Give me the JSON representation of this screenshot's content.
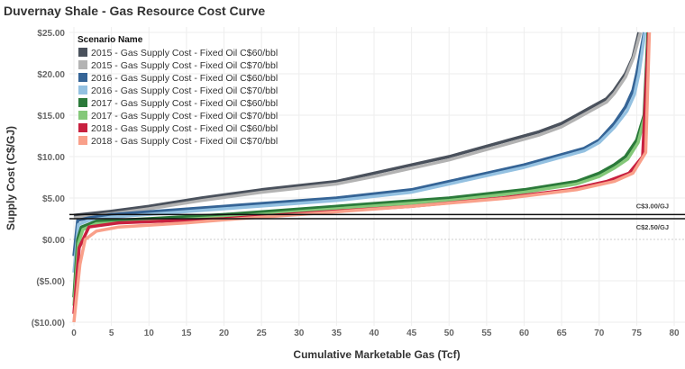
{
  "chart_data": {
    "type": "line",
    "title": "Duvernay Shale - Gas Resource Cost Curve",
    "xlabel": "Cumulative Marketable Gas (Tcf)",
    "ylabel": "Supply Cost (C$/GJ)",
    "xlim": [
      0,
      80
    ],
    "ylim": [
      -10,
      25
    ],
    "x_ticks": [
      "0",
      "5",
      "10",
      "15",
      "20",
      "25",
      "30",
      "35",
      "40",
      "45",
      "50",
      "55",
      "60",
      "65",
      "70",
      "75",
      "80"
    ],
    "y_ticks": [
      {
        "v": 25,
        "label": "$25.00"
      },
      {
        "v": 20,
        "label": "$20.00"
      },
      {
        "v": 15,
        "label": "$15.00"
      },
      {
        "v": 10,
        "label": "$10.00"
      },
      {
        "v": 5,
        "label": "$5.00"
      },
      {
        "v": 0,
        "label": "$0.00"
      },
      {
        "v": -5,
        "label": "($5.00)"
      },
      {
        "v": -10,
        "label": "($10.00)"
      }
    ],
    "grid": true,
    "legend": {
      "title": "Scenario Name",
      "placement": "top-left"
    },
    "reference_lines": [
      {
        "value": 3.0,
        "label": "C$3.00/GJ"
      },
      {
        "value": 2.5,
        "label": "C$2.50/GJ"
      }
    ],
    "series": [
      {
        "name": "2015 - Gas Supply Cost - Fixed Oil C$60/bbl",
        "color": "#4a515c",
        "points": [
          [
            0,
            2.9
          ],
          [
            5,
            3.4
          ],
          [
            10,
            4
          ],
          [
            17,
            5
          ],
          [
            25,
            6
          ],
          [
            35,
            7
          ],
          [
            40,
            8
          ],
          [
            45,
            9
          ],
          [
            50,
            10
          ],
          [
            54,
            11
          ],
          [
            58,
            12
          ],
          [
            62,
            13
          ],
          [
            65,
            14
          ],
          [
            67,
            15
          ],
          [
            69,
            16
          ],
          [
            71,
            17
          ],
          [
            72,
            18
          ],
          [
            73.5,
            20
          ],
          [
            74.5,
            22
          ],
          [
            75.3,
            25
          ]
        ]
      },
      {
        "name": "2015 - Gas Supply Cost - Fixed Oil C$70/bbl",
        "color": "#b3b3b3",
        "points": [
          [
            0,
            2.6
          ],
          [
            5,
            3.1
          ],
          [
            10,
            3.7
          ],
          [
            17,
            4.7
          ],
          [
            25,
            5.7
          ],
          [
            35,
            6.7
          ],
          [
            40,
            7.6
          ],
          [
            45,
            8.6
          ],
          [
            50,
            9.6
          ],
          [
            54,
            10.6
          ],
          [
            58,
            11.6
          ],
          [
            62,
            12.6
          ],
          [
            65,
            13.6
          ],
          [
            67,
            14.6
          ],
          [
            69,
            15.6
          ],
          [
            71,
            16.6
          ],
          [
            72,
            17.6
          ],
          [
            73.5,
            19.6
          ],
          [
            74.6,
            22
          ],
          [
            75.5,
            25
          ]
        ]
      },
      {
        "name": "2016 - Gas Supply Cost - Fixed Oil C$60/bbl",
        "color": "#356496",
        "points": [
          [
            0,
            -2
          ],
          [
            0.5,
            2.3
          ],
          [
            2,
            2.6
          ],
          [
            5,
            3
          ],
          [
            20,
            4
          ],
          [
            35,
            5
          ],
          [
            45,
            6
          ],
          [
            50,
            7
          ],
          [
            55,
            8
          ],
          [
            60,
            9
          ],
          [
            64,
            10
          ],
          [
            68,
            11
          ],
          [
            70,
            12
          ],
          [
            72,
            14
          ],
          [
            73.5,
            16
          ],
          [
            74.5,
            18
          ],
          [
            75,
            20
          ],
          [
            76,
            25
          ]
        ]
      },
      {
        "name": "2016 - Gas Supply Cost - Fixed Oil C$70/bbl",
        "color": "#94c1e1",
        "points": [
          [
            0,
            -4
          ],
          [
            0.6,
            1.8
          ],
          [
            2,
            2.3
          ],
          [
            5,
            2.7
          ],
          [
            20,
            3.7
          ],
          [
            35,
            4.7
          ],
          [
            45,
            5.7
          ],
          [
            50,
            6.7
          ],
          [
            55,
            7.7
          ],
          [
            60,
            8.7
          ],
          [
            64,
            9.7
          ],
          [
            68,
            10.7
          ],
          [
            70,
            11.7
          ],
          [
            72,
            13.5
          ],
          [
            73.7,
            15.5
          ],
          [
            74.7,
            17.5
          ],
          [
            75.3,
            20
          ],
          [
            76.1,
            25
          ]
        ]
      },
      {
        "name": "2017 - Gas Supply Cost - Fixed Oil C$60/bbl",
        "color": "#2b7a3a",
        "points": [
          [
            0,
            -7
          ],
          [
            0.5,
            0
          ],
          [
            1,
            1.5
          ],
          [
            3,
            2.2
          ],
          [
            10,
            2.5
          ],
          [
            20,
            3
          ],
          [
            35,
            4
          ],
          [
            50,
            5
          ],
          [
            60,
            6
          ],
          [
            67,
            7
          ],
          [
            70,
            8
          ],
          [
            72,
            9
          ],
          [
            73.5,
            10
          ],
          [
            75,
            12
          ],
          [
            76,
            15
          ],
          [
            76.5,
            25
          ]
        ]
      },
      {
        "name": "2017 - Gas Supply Cost - Fixed Oil C$70/bbl",
        "color": "#84c879",
        "points": [
          [
            0,
            -8
          ],
          [
            0.6,
            -0.5
          ],
          [
            1.2,
            1.2
          ],
          [
            3,
            1.9
          ],
          [
            10,
            2.2
          ],
          [
            20,
            2.7
          ],
          [
            35,
            3.7
          ],
          [
            50,
            4.7
          ],
          [
            60,
            5.7
          ],
          [
            67,
            6.7
          ],
          [
            70,
            7.6
          ],
          [
            72,
            8.6
          ],
          [
            73.8,
            9.7
          ],
          [
            75.2,
            11.7
          ],
          [
            76.1,
            15
          ],
          [
            76.6,
            25
          ]
        ]
      },
      {
        "name": "2018 - Gas Supply Cost - Fixed Oil C$60/bbl",
        "color": "#c8203f",
        "points": [
          [
            0,
            -9
          ],
          [
            0.7,
            -1
          ],
          [
            2,
            1.5
          ],
          [
            6,
            2
          ],
          [
            20,
            2.5
          ],
          [
            28,
            3
          ],
          [
            45,
            4
          ],
          [
            57,
            5
          ],
          [
            66,
            6
          ],
          [
            71,
            7
          ],
          [
            74,
            8
          ],
          [
            75.8,
            10
          ],
          [
            76.6,
            25
          ]
        ]
      },
      {
        "name": "2018 - Gas Supply Cost - Fixed Oil C$70/bbl",
        "color": "#f9a08a",
        "points": [
          [
            0,
            -10
          ],
          [
            0.8,
            -3
          ],
          [
            1.5,
            0
          ],
          [
            3,
            1
          ],
          [
            6,
            1.5
          ],
          [
            15,
            2
          ],
          [
            22,
            2.5
          ],
          [
            30,
            3
          ],
          [
            45,
            4
          ],
          [
            58,
            5
          ],
          [
            67,
            6
          ],
          [
            72,
            7
          ],
          [
            74.5,
            8
          ],
          [
            76.2,
            10.5
          ],
          [
            76.7,
            25
          ]
        ]
      }
    ]
  }
}
